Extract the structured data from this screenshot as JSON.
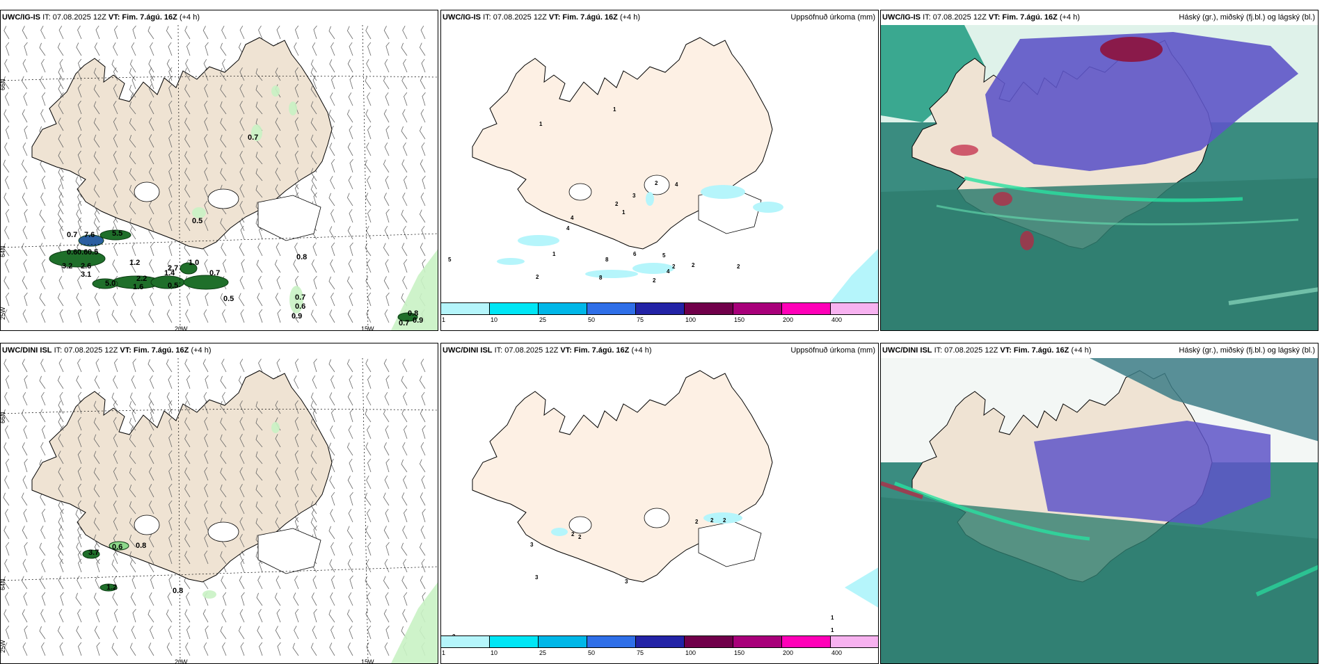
{
  "panels": [
    {
      "model": "UWC/IG-IS",
      "it_label": "IT: 07.08.2025 12Z",
      "vt_label": "VT: Fim. 7.ágú. 16Z",
      "lead": "(+4 h)",
      "right": ""
    },
    {
      "model": "UWC/IG-IS",
      "it_label": "IT: 07.08.2025 12Z",
      "vt_label": "VT: Fim. 7.ágú. 16Z",
      "lead": "(+4 h)",
      "right": "Uppsöfnuð úrkoma (mm)"
    },
    {
      "model": "UWC/IG-IS",
      "it_label": "IT: 07.08.2025 12Z",
      "vt_label": "VT: Fim. 7.ágú. 16Z",
      "lead": "(+4 h)",
      "right": "Háský (gr.), miðský (fj.bl.) og lágský (bl.)"
    },
    {
      "model": "UWC/DINI ISL",
      "it_label": "IT: 07.08.2025 12Z",
      "vt_label": "VT: Fim. 7.ágú. 16Z",
      "lead": "(+4 h)",
      "right": ""
    },
    {
      "model": "UWC/DINI ISL",
      "it_label": "IT: 07.08.2025 12Z",
      "vt_label": "VT: Fim. 7.ágú. 16Z",
      "lead": "(+4 h)",
      "right": "Uppsöfnuð úrkoma (mm)"
    },
    {
      "model": "UWC/DINI ISL",
      "it_label": "IT: 07.08.2025 12Z",
      "vt_label": "VT: Fim. 7.ágú. 16Z",
      "lead": "(+4 h)",
      "right": "Háský (gr.), miðský (fj.bl.) og lágský (bl.)"
    }
  ],
  "grid_labels": {
    "lat66": "66N",
    "lat64": "64N",
    "lat65": "65N",
    "lon20": "20W",
    "lon15": "15W",
    "lon25": "25W"
  },
  "legend": {
    "colors": [
      "#b5f5fb",
      "#00e6f5",
      "#00b7e8",
      "#2f6fe8",
      "#2323a6",
      "#70004a",
      "#a8007a",
      "#ff00b8",
      "#f7b2f0"
    ],
    "ticks": [
      "1",
      "10",
      "25",
      "50",
      "75",
      "100",
      "150",
      "200",
      "400"
    ]
  },
  "colors": {
    "land": "#efe3d3",
    "land_precip": "#fdf0e4",
    "sea_cloud": "#3a8c80",
    "high_cloud": "#5e55c8",
    "precip_cyan": "#b5f5fb"
  },
  "values": {
    "p1": [
      "0.7",
      "0.5",
      "0.7",
      "7.6",
      "5.5",
      "0.6",
      "0.6",
      "0.5",
      "3.2",
      "2.6",
      "3.1",
      "1.2",
      "2.2",
      "2.7",
      "1.0",
      "1.4",
      "0.7",
      "0.5",
      "5.0",
      "1.6",
      "0.5",
      "0.8",
      "0.7",
      "0.6",
      "0.9",
      "0.8",
      "0.9",
      "0.7"
    ],
    "p2": [
      "1",
      "1",
      "2",
      "3",
      "2",
      "4",
      "1",
      "4",
      "4",
      "5",
      "1",
      "2",
      "8",
      "6",
      "5",
      "2",
      "8",
      "4",
      "2",
      "2",
      "2"
    ],
    "p4": [
      "0.6",
      "0.8",
      "3.7",
      "1.2",
      "0.8"
    ],
    "p5": [
      "2",
      "2",
      "2",
      "2",
      "3",
      "2",
      "3",
      "3",
      "2",
      "1",
      "1"
    ]
  }
}
